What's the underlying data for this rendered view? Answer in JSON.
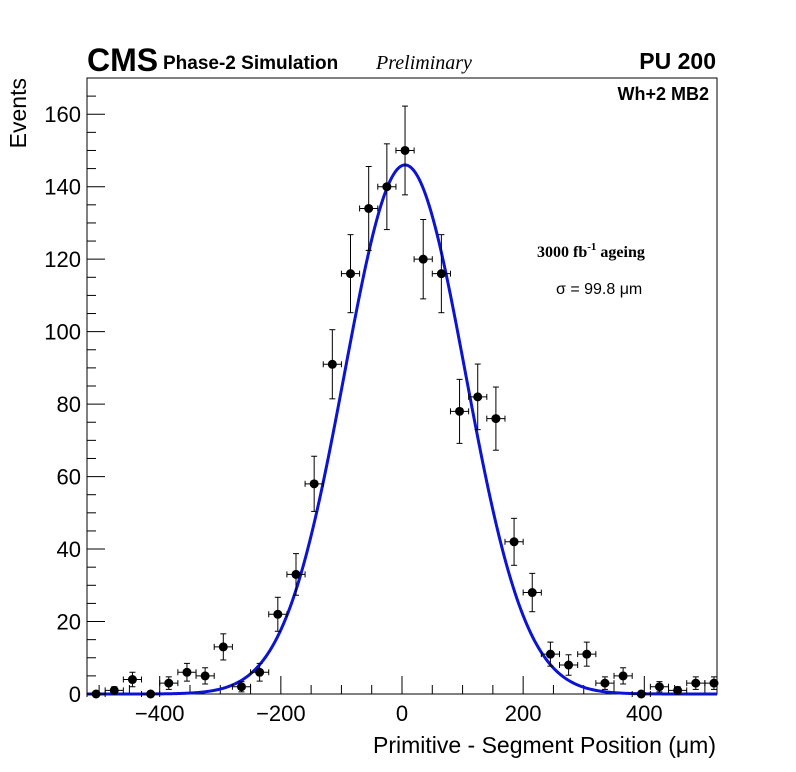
{
  "chart_data": {
    "type": "scatter",
    "experiment": "CMS",
    "subtitle": "Phase-2 Simulation",
    "status": "Preliminary",
    "pileup": "PU 200",
    "station": "Wh+2 MB2",
    "ageing_label": "3000 fb",
    "ageing_exp": "-1",
    "ageing_suffix": " ageing",
    "sigma_label": "σ = 99.8 μm",
    "xlabel": "Primitive - Segment Position (μm)",
    "ylabel": "Events",
    "xlim": [
      -520,
      520
    ],
    "ylim": [
      0,
      170
    ],
    "xticks": [
      -400,
      -200,
      0,
      200,
      400
    ],
    "xtick_labels": [
      "−400",
      "−200",
      "0",
      "200",
      "400"
    ],
    "yticks": [
      0,
      20,
      40,
      60,
      80,
      100,
      120,
      140,
      160
    ],
    "ytick_labels": [
      "0",
      "20",
      "40",
      "60",
      "80",
      "100",
      "120",
      "140",
      "160"
    ],
    "bin_half_width": 15,
    "series": [
      {
        "name": "data",
        "x": [
          -505,
          -475,
          -445,
          -415,
          -385,
          -355,
          -325,
          -295,
          -265,
          -235,
          -205,
          -175,
          -145,
          -115,
          -85,
          -55,
          -25,
          5,
          35,
          65,
          95,
          125,
          155,
          185,
          215,
          245,
          275,
          305,
          335,
          365,
          395,
          425,
          455,
          485,
          515
        ],
        "y": [
          0,
          1,
          4,
          0,
          3,
          6,
          5,
          13,
          2,
          6,
          22,
          33,
          58,
          91,
          116,
          134,
          140,
          150,
          120,
          116,
          78,
          82,
          76,
          42,
          28,
          11,
          8,
          11,
          3,
          5,
          0,
          2,
          1,
          3,
          3
        ]
      },
      {
        "name": "gaussian fit",
        "color": "#0a14d2",
        "amplitude": 146,
        "mean": 5,
        "sigma": 99.8
      }
    ]
  }
}
